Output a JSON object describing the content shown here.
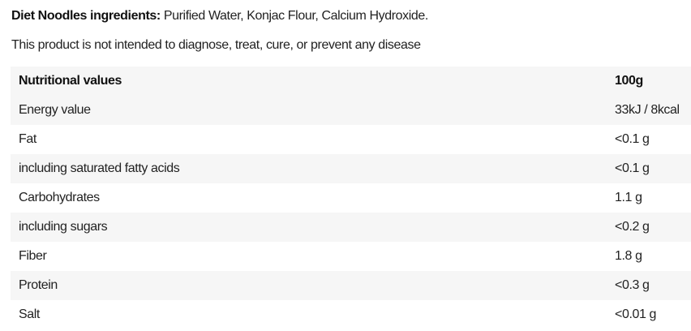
{
  "ingredients": {
    "label": "Diet Noodles ingredients:",
    "text": " Purified Water, Konjac Flour, Calcium Hydroxide."
  },
  "disclaimer": "This product is not intended to diagnose, treat, cure, or prevent any disease",
  "table": {
    "header": {
      "name": "Nutritional values",
      "value": "100g"
    },
    "rows": [
      {
        "name": "Energy value",
        "value": "33kJ / 8kcal"
      },
      {
        "name": "Fat",
        "value": "<0.1 g"
      },
      {
        "name": "including saturated fatty acids",
        "value": "<0.1 g"
      },
      {
        "name": "Carbohydrates",
        "value": "1.1 g"
      },
      {
        "name": "including sugars",
        "value": "<0.2 g"
      },
      {
        "name": "Fiber",
        "value": "1.8 g"
      },
      {
        "name": "Protein",
        "value": "<0.3 g"
      },
      {
        "name": "Salt",
        "value": "<0.01 g"
      }
    ]
  }
}
